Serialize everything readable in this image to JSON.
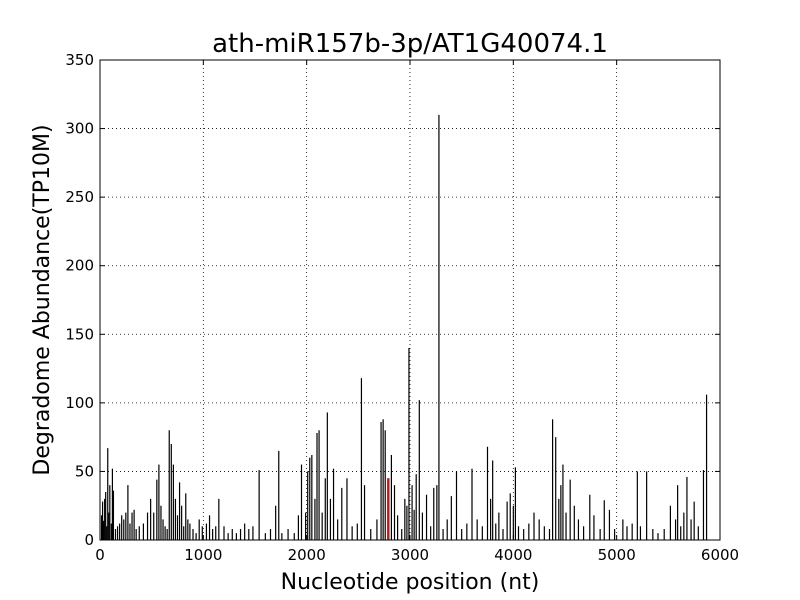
{
  "chart_data": {
    "type": "bar",
    "title": "ath-miR157b-3p/AT1G40074.1",
    "xlabel": "Nucleotide position (nt)",
    "ylabel": "Degradome Abundance(TP10M)",
    "xlim": [
      0,
      6000
    ],
    "ylim": [
      0,
      350
    ],
    "x_ticks": [
      "0",
      "1000",
      "2000",
      "3000",
      "4000",
      "5000",
      "6000"
    ],
    "y_ticks": [
      "0",
      "50",
      "100",
      "150",
      "200",
      "250",
      "300",
      "350"
    ],
    "grid": true,
    "grid_style": "dotted",
    "colors": {
      "bars": "#000000",
      "highlight": "#b22222"
    },
    "series": [
      {
        "values": [
          [
            15,
            18
          ],
          [
            25,
            28
          ],
          [
            35,
            14
          ],
          [
            45,
            30
          ],
          [
            55,
            35
          ],
          [
            65,
            10
          ],
          [
            75,
            67
          ],
          [
            85,
            20
          ],
          [
            95,
            40
          ],
          [
            110,
            12
          ],
          [
            120,
            52
          ],
          [
            130,
            36
          ],
          [
            150,
            8
          ],
          [
            170,
            10
          ],
          [
            190,
            12
          ],
          [
            210,
            18
          ],
          [
            230,
            15
          ],
          [
            250,
            20
          ],
          [
            270,
            40
          ],
          [
            290,
            12
          ],
          [
            310,
            20
          ],
          [
            330,
            22
          ],
          [
            350,
            8
          ],
          [
            380,
            10
          ],
          [
            420,
            12
          ],
          [
            460,
            20
          ],
          [
            490,
            30
          ],
          [
            520,
            20
          ],
          [
            550,
            44
          ],
          [
            570,
            55
          ],
          [
            590,
            25
          ],
          [
            610,
            15
          ],
          [
            630,
            10
          ],
          [
            650,
            8
          ],
          [
            670,
            80
          ],
          [
            690,
            70
          ],
          [
            710,
            55
          ],
          [
            730,
            30
          ],
          [
            750,
            18
          ],
          [
            770,
            42
          ],
          [
            790,
            25
          ],
          [
            810,
            10
          ],
          [
            830,
            34
          ],
          [
            850,
            15
          ],
          [
            870,
            12
          ],
          [
            900,
            8
          ],
          [
            930,
            5
          ],
          [
            960,
            15
          ],
          [
            990,
            10
          ],
          [
            1030,
            12
          ],
          [
            1060,
            18
          ],
          [
            1090,
            8
          ],
          [
            1120,
            10
          ],
          [
            1150,
            30
          ],
          [
            1200,
            10
          ],
          [
            1240,
            5
          ],
          [
            1280,
            8
          ],
          [
            1320,
            5
          ],
          [
            1360,
            8
          ],
          [
            1400,
            12
          ],
          [
            1440,
            8
          ],
          [
            1480,
            10
          ],
          [
            1540,
            51
          ],
          [
            1600,
            5
          ],
          [
            1650,
            8
          ],
          [
            1700,
            25
          ],
          [
            1730,
            65
          ],
          [
            1760,
            5
          ],
          [
            1820,
            8
          ],
          [
            1880,
            5
          ],
          [
            1920,
            18
          ],
          [
            1950,
            55
          ],
          [
            1990,
            20
          ],
          [
            2010,
            50
          ],
          [
            2030,
            60
          ],
          [
            2050,
            62
          ],
          [
            2080,
            30
          ],
          [
            2100,
            78
          ],
          [
            2120,
            80
          ],
          [
            2150,
            20
          ],
          [
            2180,
            45
          ],
          [
            2200,
            93
          ],
          [
            2230,
            30
          ],
          [
            2260,
            52
          ],
          [
            2300,
            15
          ],
          [
            2340,
            38
          ],
          [
            2390,
            45
          ],
          [
            2440,
            10
          ],
          [
            2490,
            12
          ],
          [
            2530,
            118
          ],
          [
            2560,
            40
          ],
          [
            2620,
            8
          ],
          [
            2680,
            15
          ],
          [
            2720,
            86
          ],
          [
            2740,
            88
          ],
          [
            2760,
            80
          ],
          [
            2790,
            45
          ],
          [
            2820,
            62
          ],
          [
            2850,
            40
          ],
          [
            2880,
            18
          ],
          [
            2920,
            8
          ],
          [
            2950,
            30
          ],
          [
            2970,
            25
          ],
          [
            2990,
            140
          ],
          [
            3020,
            40
          ],
          [
            3040,
            22
          ],
          [
            3060,
            48
          ],
          [
            3090,
            102
          ],
          [
            3120,
            20
          ],
          [
            3160,
            33
          ],
          [
            3200,
            10
          ],
          [
            3230,
            38
          ],
          [
            3260,
            40
          ],
          [
            3280,
            310
          ],
          [
            3320,
            8
          ],
          [
            3360,
            15
          ],
          [
            3400,
            32
          ],
          [
            3450,
            50
          ],
          [
            3500,
            8
          ],
          [
            3550,
            12
          ],
          [
            3600,
            52
          ],
          [
            3650,
            15
          ],
          [
            3700,
            10
          ],
          [
            3750,
            68
          ],
          [
            3780,
            30
          ],
          [
            3800,
            58
          ],
          [
            3830,
            12
          ],
          [
            3860,
            20
          ],
          [
            3900,
            8
          ],
          [
            3940,
            28
          ],
          [
            3970,
            34
          ],
          [
            4000,
            25
          ],
          [
            4020,
            53
          ],
          [
            4050,
            10
          ],
          [
            4100,
            8
          ],
          [
            4150,
            12
          ],
          [
            4200,
            20
          ],
          [
            4250,
            15
          ],
          [
            4300,
            10
          ],
          [
            4350,
            8
          ],
          [
            4380,
            88
          ],
          [
            4410,
            75
          ],
          [
            4440,
            30
          ],
          [
            4460,
            40
          ],
          [
            4480,
            55
          ],
          [
            4510,
            20
          ],
          [
            4550,
            44
          ],
          [
            4590,
            25
          ],
          [
            4630,
            15
          ],
          [
            4680,
            10
          ],
          [
            4740,
            33
          ],
          [
            4780,
            18
          ],
          [
            4840,
            8
          ],
          [
            4880,
            29
          ],
          [
            4930,
            22
          ],
          [
            4980,
            8
          ],
          [
            5060,
            15
          ],
          [
            5100,
            10
          ],
          [
            5150,
            12
          ],
          [
            5200,
            50
          ],
          [
            5230,
            10
          ],
          [
            5290,
            50
          ],
          [
            5350,
            8
          ],
          [
            5400,
            5
          ],
          [
            5460,
            8
          ],
          [
            5520,
            25
          ],
          [
            5570,
            15
          ],
          [
            5590,
            40
          ],
          [
            5620,
            10
          ],
          [
            5650,
            20
          ],
          [
            5680,
            46
          ],
          [
            5720,
            15
          ],
          [
            5750,
            28
          ],
          [
            5790,
            10
          ],
          [
            5840,
            51
          ],
          [
            5870,
            106
          ]
        ]
      }
    ],
    "highlight": {
      "x": 2790,
      "y": 45
    }
  }
}
